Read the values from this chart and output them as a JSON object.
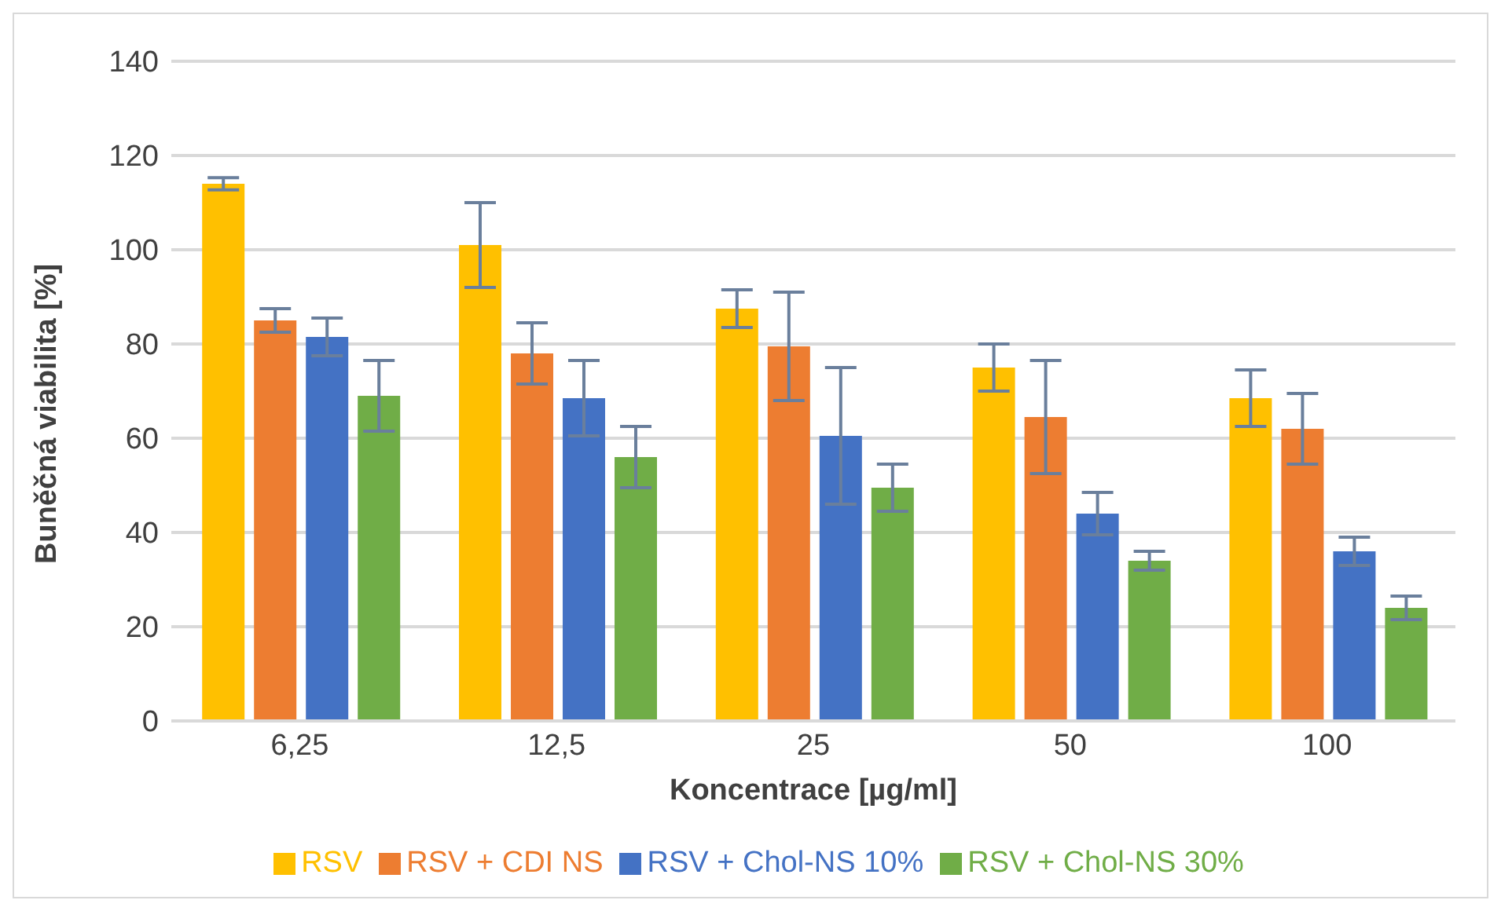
{
  "chart_data": {
    "type": "bar",
    "xlabel": "Koncentrace [µg/ml]",
    "ylabel": "Buněčná viabilita [%]",
    "categories": [
      "6,25",
      "12,5",
      "25",
      "50",
      "100"
    ],
    "series": [
      {
        "name": "RSV",
        "color": "#ffc000",
        "values": [
          114,
          101,
          87.5,
          75,
          68.5
        ],
        "errors": [
          1.3,
          9,
          4,
          5,
          6
        ]
      },
      {
        "name": "RSV + CDI NS",
        "color": "#ed7d31",
        "values": [
          85,
          78,
          79.5,
          64.5,
          62
        ],
        "errors": [
          2.5,
          6.5,
          11.5,
          12,
          7.5
        ]
      },
      {
        "name": "RSV + Chol-NS 10%",
        "color": "#4472c4",
        "values": [
          81.5,
          68.5,
          60.5,
          44,
          36
        ],
        "errors": [
          4,
          8,
          14.5,
          4.5,
          3
        ]
      },
      {
        "name": "RSV + Chol-NS 30%",
        "color": "#70ad47",
        "values": [
          69,
          56,
          49.5,
          34,
          24
        ],
        "errors": [
          7.5,
          6.5,
          5,
          2,
          2.5
        ]
      }
    ],
    "ylim": [
      0,
      140
    ],
    "yticks": [
      0,
      20,
      40,
      60,
      80,
      100,
      120,
      140
    ],
    "grid": "y",
    "legend": "bottom"
  }
}
